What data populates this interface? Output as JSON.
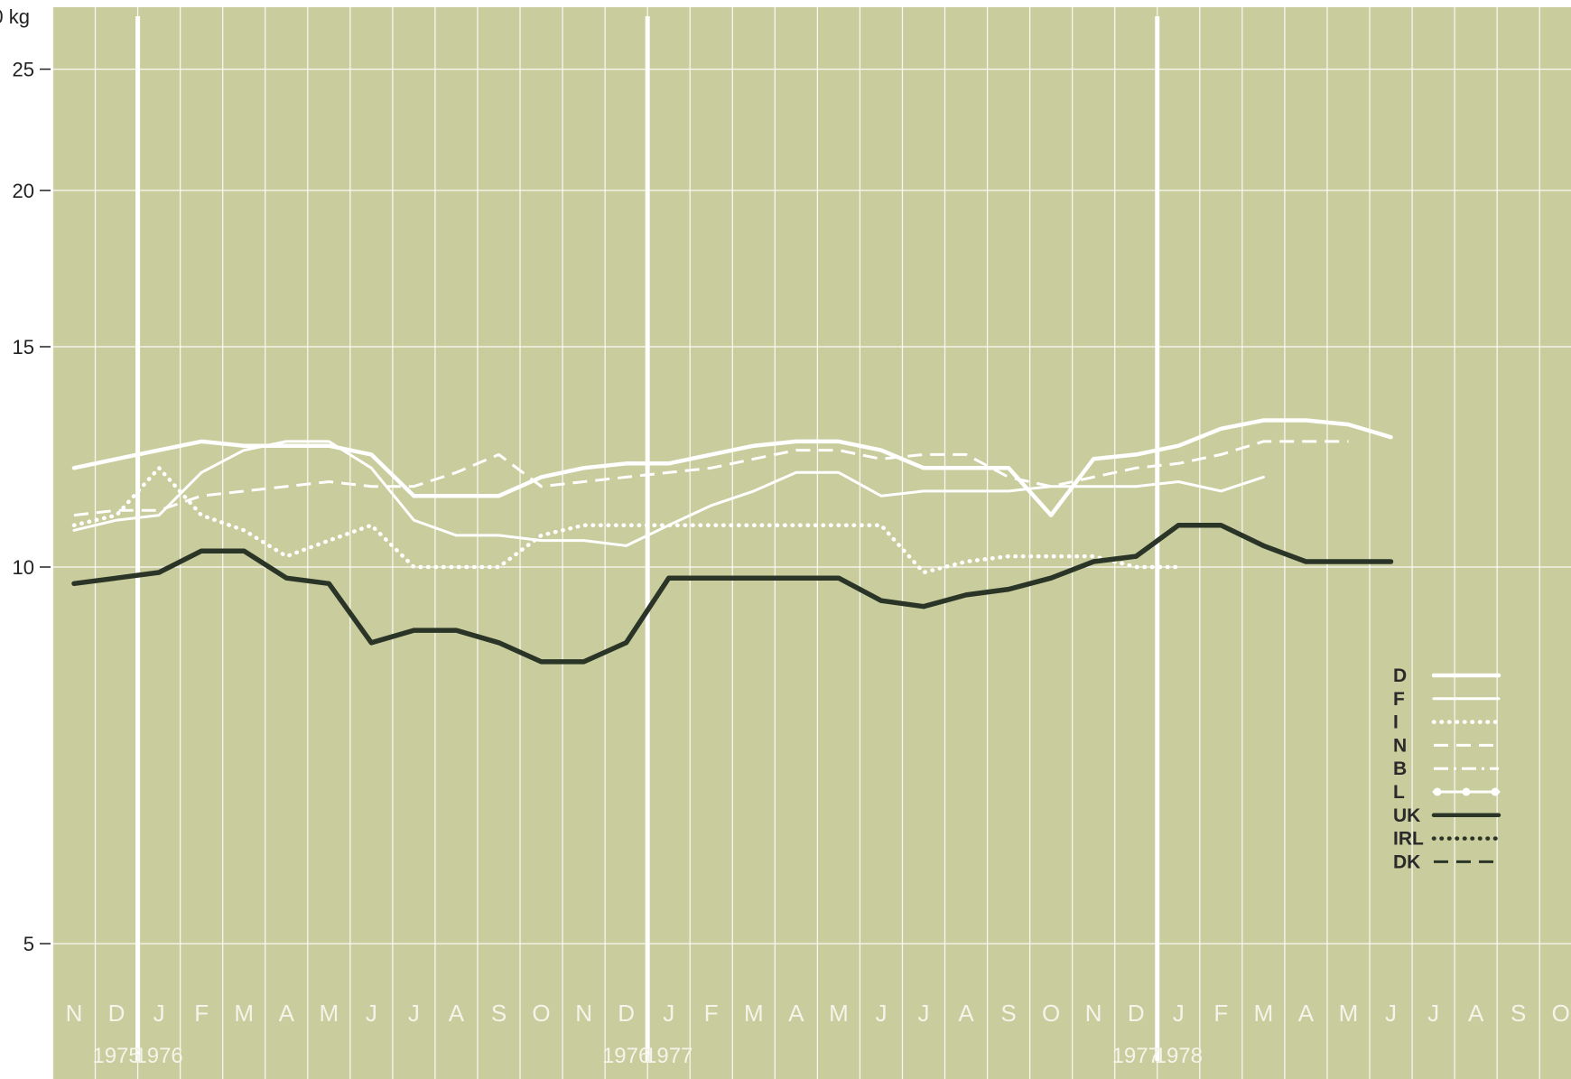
{
  "chart_data": {
    "type": "line",
    "y_unit_label": "0 kg",
    "y_ticks": [
      5,
      10,
      15,
      20,
      25
    ],
    "ylim": [
      4,
      27.5
    ],
    "y_scale": "log",
    "grid": true,
    "legend_placement": "right",
    "background_color": "#c9cc9c",
    "x_month_labels": [
      "N",
      "D",
      "J",
      "F",
      "M",
      "A",
      "M",
      "J",
      "J",
      "A",
      "S",
      "O",
      "N",
      "D",
      "J",
      "F",
      "M",
      "A",
      "M",
      "J",
      "J",
      "A",
      "S",
      "O",
      "N",
      "D",
      "J",
      "F",
      "M",
      "A",
      "M",
      "J",
      "J",
      "A",
      "S",
      "O"
    ],
    "x_start": "1975-11",
    "year_labels": [
      {
        "text": "1975",
        "month": "1975-12"
      },
      {
        "text": "1976",
        "month": "1976-01"
      },
      {
        "text": "1976",
        "month": "1976-12"
      },
      {
        "text": "1977",
        "month": "1977-01"
      },
      {
        "text": "1977",
        "month": "1977-12"
      },
      {
        "text": "1978",
        "month": "1978-01"
      }
    ],
    "year_dividers": [
      "1975-12/1976-01",
      "1976-12/1977-01",
      "1977-12/1978-01"
    ],
    "series": [
      {
        "name": "D",
        "color": "#ffffff",
        "style": "solid-thick",
        "start": "1975-11",
        "values": [
          12.0,
          12.2,
          12.4,
          12.6,
          12.5,
          12.5,
          12.5,
          12.3,
          11.4,
          11.4,
          11.4,
          11.8,
          12.0,
          12.1,
          12.1,
          12.3,
          12.5,
          12.6,
          12.6,
          12.4,
          12.0,
          12.0,
          12.0,
          11.0,
          12.2,
          12.3,
          12.5,
          12.9,
          13.1,
          13.1,
          13.0,
          12.7
        ]
      },
      {
        "name": "F",
        "color": "#ffffff",
        "style": "solid",
        "start": "1975-11",
        "values": [
          10.7,
          10.9,
          11.0,
          11.9,
          12.4,
          12.6,
          12.6,
          12.0,
          10.9,
          10.6,
          10.6,
          10.5,
          10.5,
          10.4,
          10.8,
          11.2,
          11.5,
          11.9,
          11.9,
          11.4,
          11.5,
          11.5,
          11.5,
          11.6,
          11.6,
          11.6,
          11.7,
          11.5,
          11.8
        ]
      },
      {
        "name": "I",
        "color": "#ffffff",
        "style": "dotted",
        "start": "1975-11",
        "values": [
          10.8,
          11.0,
          12.0,
          11.0,
          10.7,
          10.2,
          10.5,
          10.8,
          10.0,
          10.0,
          10.0,
          10.6,
          10.8,
          10.8,
          10.8,
          10.8,
          10.8,
          10.8,
          10.8,
          10.8,
          9.9,
          10.1,
          10.2,
          10.2,
          10.2,
          10.0,
          10.0
        ]
      },
      {
        "name": "N",
        "color": "#ffffff",
        "style": "dashed",
        "start": "1975-11",
        "values": [
          11.0,
          11.1,
          11.1,
          11.4,
          11.5,
          11.6,
          11.7,
          11.6,
          11.6,
          11.9,
          12.3,
          11.6,
          11.7,
          11.8,
          11.9,
          12.0,
          12.2,
          12.4,
          12.4,
          12.2,
          12.3,
          12.3,
          11.8,
          11.6,
          11.8,
          12.0,
          12.1,
          12.3,
          12.6,
          12.6,
          12.6
        ]
      },
      {
        "name": "UK",
        "color": "#2b3527",
        "style": "solid-thick",
        "start": "1975-11",
        "values": [
          9.7,
          9.8,
          9.9,
          10.3,
          10.3,
          9.8,
          9.7,
          8.7,
          8.9,
          8.9,
          8.7,
          8.4,
          8.4,
          8.7,
          9.8,
          9.8,
          9.8,
          9.8,
          9.8,
          9.4,
          9.3,
          9.5,
          9.6,
          9.8,
          10.1,
          10.2,
          10.8,
          10.8,
          10.4,
          10.1,
          10.1,
          10.1
        ]
      }
    ],
    "legend": [
      {
        "label": "D",
        "style": "solid-thick",
        "color": "#ffffff"
      },
      {
        "label": "F",
        "style": "solid",
        "color": "#ffffff"
      },
      {
        "label": "I",
        "style": "dotted",
        "color": "#ffffff"
      },
      {
        "label": "N",
        "style": "dashed",
        "color": "#ffffff"
      },
      {
        "label": "B",
        "style": "dashdot",
        "color": "#ffffff"
      },
      {
        "label": "L",
        "style": "dot-marker",
        "color": "#ffffff"
      },
      {
        "label": "UK",
        "style": "solid-thick",
        "color": "#2b3527"
      },
      {
        "label": "IRL",
        "style": "dotted",
        "color": "#2b3527"
      },
      {
        "label": "DK",
        "style": "dashed",
        "color": "#2b3527"
      }
    ]
  }
}
